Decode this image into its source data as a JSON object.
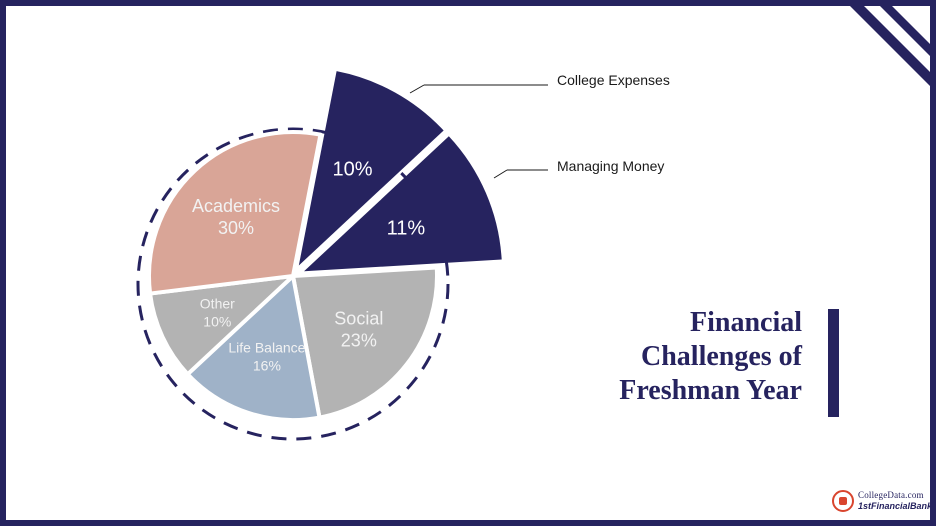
{
  "chart_data": {
    "type": "pie",
    "slices": [
      {
        "label": "College Expenses",
        "value": 10,
        "value_label": "10%",
        "color": "#26235f",
        "exploded": true
      },
      {
        "label": "Managing Money",
        "value": 11,
        "value_label": "11%",
        "color": "#26235f",
        "exploded": true
      },
      {
        "label": "Social",
        "value": 23,
        "value_label": "23%",
        "color": "#b3b3b3",
        "exploded": false
      },
      {
        "label": "Life Balance",
        "value": 16,
        "value_label": "16%",
        "color": "#9fb2c8",
        "exploded": false
      },
      {
        "label": "Other",
        "value": 10,
        "value_label": "10%",
        "color": "#b3b3b3",
        "exploded": false
      },
      {
        "label": "Academics",
        "value": 30,
        "value_label": "30%",
        "color": "#d9a597",
        "exploded": false
      }
    ]
  },
  "callouts": {
    "college_expenses": "College Expenses",
    "managing_money": "Managing Money"
  },
  "title": {
    "line1": "Financial",
    "line2": "Challenges of",
    "line3": "Freshman Year"
  },
  "logo": {
    "line1": "CollegeData.com",
    "line2": "1stFinancialBank"
  },
  "colors": {
    "navy": "#26235f",
    "academics": "#d9a597",
    "social": "#b3b3b3",
    "life_balance": "#9fb2c8",
    "other": "#b3b3b3"
  }
}
